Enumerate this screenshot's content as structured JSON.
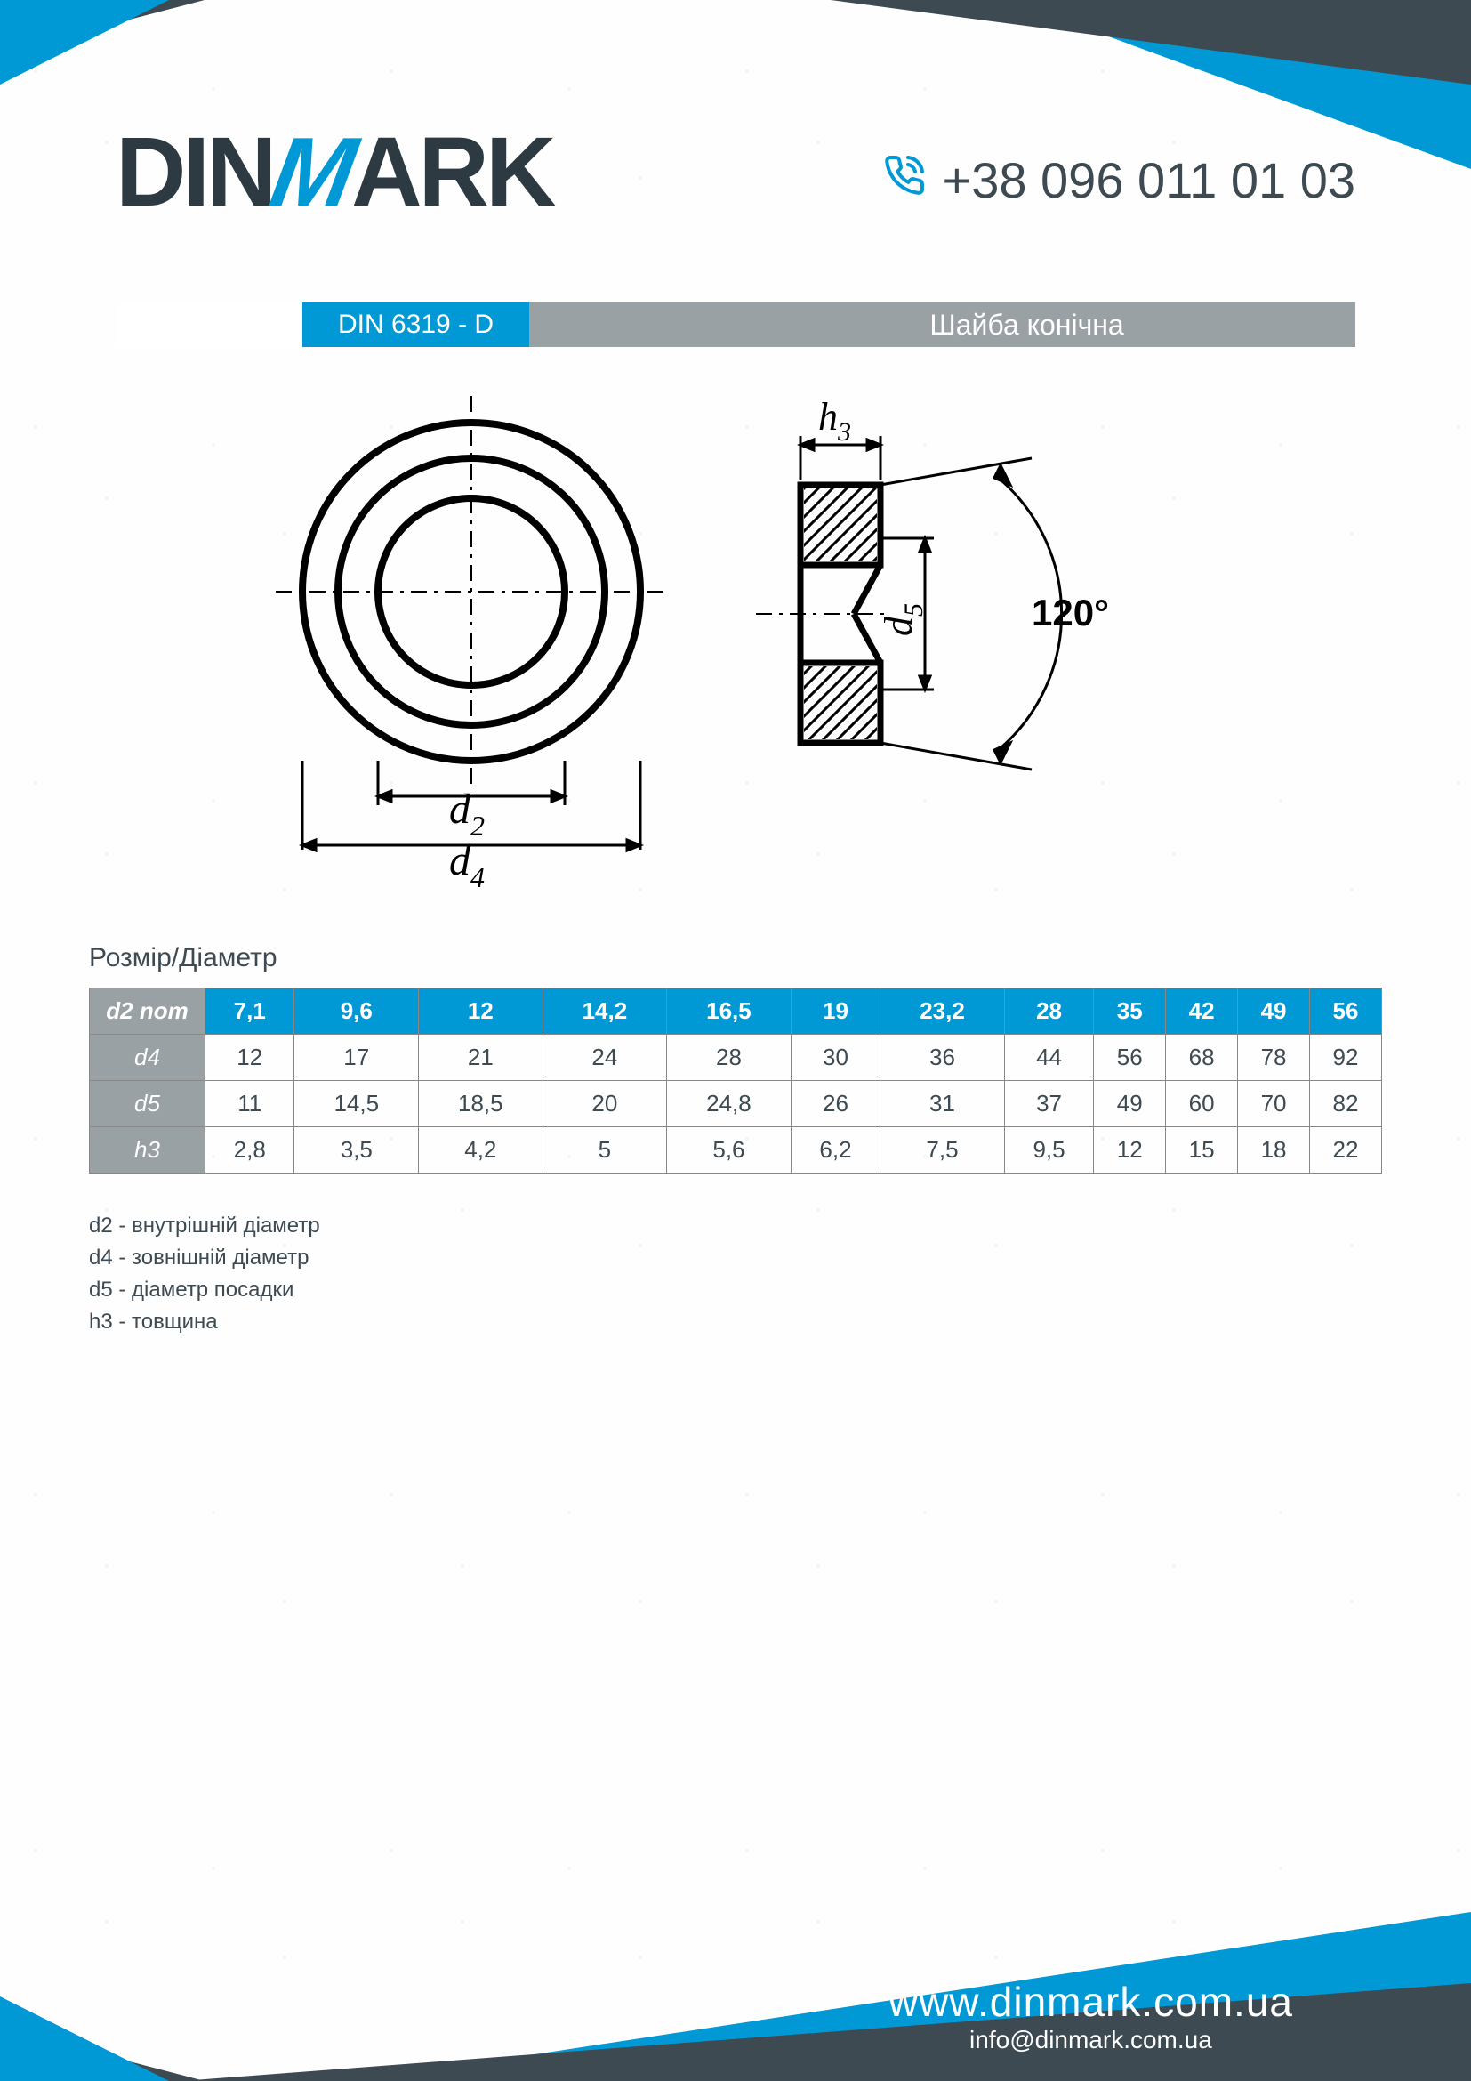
{
  "brand": {
    "pre": "DIN",
    "mid": "M",
    "post": "ARK"
  },
  "phone": "+38 096 011 01 03",
  "header": {
    "standard": "DIN 6319 - D",
    "product_name": "Шайба конічна"
  },
  "diagram": {
    "label_d2": "d",
    "label_d2_sub": "2",
    "label_d4": "d",
    "label_d4_sub": "4",
    "label_h3": "h",
    "label_h3_sub": "3",
    "label_d5": "d",
    "label_d5_sub": "5",
    "angle": "120°"
  },
  "table": {
    "caption": "Розмір/Діаметр",
    "header_label": "d2 nom",
    "row_labels": [
      "d4",
      "d5",
      "h3"
    ],
    "columns": [
      "7,1",
      "9,6",
      "12",
      "14,2",
      "16,5",
      "19",
      "23,2",
      "28",
      "35",
      "42",
      "49",
      "56"
    ],
    "rows": [
      [
        "12",
        "17",
        "21",
        "24",
        "28",
        "30",
        "36",
        "44",
        "56",
        "68",
        "78",
        "92"
      ],
      [
        "11",
        "14,5",
        "18,5",
        "20",
        "24,8",
        "26",
        "31",
        "37",
        "49",
        "60",
        "70",
        "82"
      ],
      [
        "2,8",
        "3,5",
        "4,2",
        "5",
        "5,6",
        "6,2",
        "7,5",
        "9,5",
        "12",
        "15",
        "18",
        "22"
      ]
    ],
    "colors": {
      "header_bg": "#0099d6",
      "rowlabel_bg": "#9aa1a5",
      "border": "#888888",
      "text": "#3d4a52"
    }
  },
  "legend": [
    "d2 - внутрішній діаметр",
    "d4 - зовнішній діаметр",
    "d5 - діаметр посадки",
    "h3 - товщина"
  ],
  "footer": {
    "url": "www.dinmark.com.ua",
    "email": "info@dinmark.com.ua"
  },
  "palette": {
    "blue": "#0099d6",
    "dark": "#3d4a52",
    "gray": "#9aa1a5"
  }
}
